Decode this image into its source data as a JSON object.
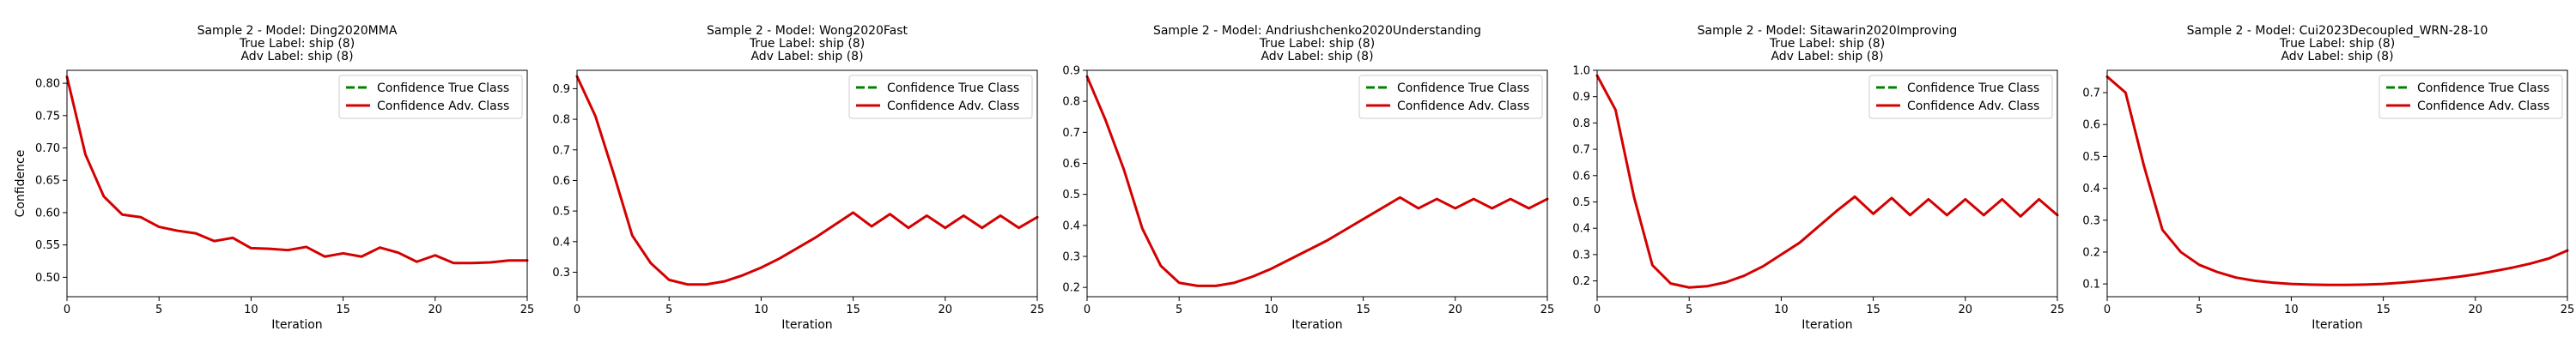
{
  "colors": {
    "true_class": "#008000",
    "adv_class": "#d40000"
  },
  "chart_data": [
    {
      "type": "line",
      "title_lines": [
        "Sample 2 - Model: Ding2020MMA",
        "True Label: ship (8)",
        "Adv Label: ship (8)"
      ],
      "xlabel": "Iteration",
      "ylabel": "Confidence",
      "xlim": [
        0,
        25
      ],
      "ylim": [
        0.47,
        0.82
      ],
      "xticks": [
        0,
        5,
        10,
        15,
        20,
        25
      ],
      "yticks": [
        0.5,
        0.55,
        0.6,
        0.65,
        0.7,
        0.75,
        0.8
      ],
      "ytick_labels": [
        "0.50",
        "0.55",
        "0.60",
        "0.65",
        "0.70",
        "0.75",
        "0.80"
      ],
      "legend_position": "top-right",
      "series": [
        {
          "name": "Confidence True Class",
          "style": "dashed",
          "x": [],
          "y": []
        },
        {
          "name": "Confidence Adv. Class",
          "style": "solid",
          "x": [
            0,
            1,
            2,
            3,
            4,
            5,
            6,
            7,
            8,
            9,
            10,
            11,
            12,
            13,
            14,
            15,
            16,
            17,
            18,
            19,
            20,
            21,
            22,
            23,
            24,
            25
          ],
          "y": [
            0.81,
            0.69,
            0.625,
            0.597,
            0.593,
            0.578,
            0.572,
            0.568,
            0.556,
            0.561,
            0.545,
            0.544,
            0.542,
            0.547,
            0.532,
            0.537,
            0.532,
            0.546,
            0.538,
            0.524,
            0.534,
            0.522,
            0.522,
            0.523,
            0.526,
            0.526
          ]
        }
      ]
    },
    {
      "type": "line",
      "title_lines": [
        "Sample 2 - Model: Wong2020Fast",
        "True Label: ship (8)",
        "Adv Label: ship (8)"
      ],
      "xlabel": "Iteration",
      "ylabel": "",
      "xlim": [
        0,
        25
      ],
      "ylim": [
        0.22,
        0.96
      ],
      "xticks": [
        0,
        5,
        10,
        15,
        20,
        25
      ],
      "yticks": [
        0.3,
        0.4,
        0.5,
        0.6,
        0.7,
        0.8,
        0.9
      ],
      "ytick_labels": [
        "0.3",
        "0.4",
        "0.5",
        "0.6",
        "0.7",
        "0.8",
        "0.9"
      ],
      "legend_position": "top-right",
      "series": [
        {
          "name": "Confidence True Class",
          "style": "dashed",
          "x": [],
          "y": []
        },
        {
          "name": "Confidence Adv. Class",
          "style": "solid",
          "x": [
            0,
            1,
            2,
            3,
            4,
            5,
            6,
            7,
            8,
            9,
            10,
            11,
            12,
            13,
            14,
            15,
            16,
            17,
            18,
            19,
            20,
            21,
            22,
            23,
            24,
            25
          ],
          "y": [
            0.94,
            0.81,
            0.62,
            0.42,
            0.33,
            0.275,
            0.26,
            0.26,
            0.27,
            0.29,
            0.315,
            0.345,
            0.38,
            0.415,
            0.455,
            0.495,
            0.45,
            0.49,
            0.445,
            0.485,
            0.445,
            0.485,
            0.445,
            0.485,
            0.445,
            0.48
          ]
        }
      ]
    },
    {
      "type": "line",
      "title_lines": [
        "Sample 2 - Model: Andriushchenko2020Understanding",
        "True Label: ship (8)",
        "Adv Label: ship (8)"
      ],
      "xlabel": "Iteration",
      "ylabel": "",
      "xlim": [
        0,
        25
      ],
      "ylim": [
        0.17,
        0.9
      ],
      "xticks": [
        0,
        5,
        10,
        15,
        20,
        25
      ],
      "yticks": [
        0.2,
        0.3,
        0.4,
        0.5,
        0.6,
        0.7,
        0.8,
        0.9
      ],
      "ytick_labels": [
        "0.2",
        "0.3",
        "0.4",
        "0.5",
        "0.6",
        "0.7",
        "0.8",
        "0.9"
      ],
      "legend_position": "top-right",
      "series": [
        {
          "name": "Confidence True Class",
          "style": "dashed",
          "x": [],
          "y": []
        },
        {
          "name": "Confidence Adv. Class",
          "style": "solid",
          "x": [
            0,
            1,
            2,
            3,
            4,
            5,
            6,
            7,
            8,
            9,
            10,
            11,
            12,
            13,
            14,
            15,
            16,
            17,
            18,
            19,
            20,
            21,
            22,
            23,
            24,
            25
          ],
          "y": [
            0.88,
            0.74,
            0.58,
            0.39,
            0.27,
            0.215,
            0.205,
            0.205,
            0.215,
            0.235,
            0.26,
            0.29,
            0.32,
            0.35,
            0.385,
            0.42,
            0.455,
            0.49,
            0.455,
            0.485,
            0.455,
            0.485,
            0.455,
            0.485,
            0.455,
            0.485
          ]
        }
      ]
    },
    {
      "type": "line",
      "title_lines": [
        "Sample 2 - Model: Sitawarin2020Improving",
        "True Label: ship (8)",
        "Adv Label: ship (8)"
      ],
      "xlabel": "Iteration",
      "ylabel": "",
      "xlim": [
        0,
        25
      ],
      "ylim": [
        0.14,
        1.0
      ],
      "xticks": [
        0,
        5,
        10,
        15,
        20,
        25
      ],
      "yticks": [
        0.2,
        0.3,
        0.4,
        0.5,
        0.6,
        0.7,
        0.8,
        0.9,
        1.0
      ],
      "ytick_labels": [
        "0.2",
        "0.3",
        "0.4",
        "0.5",
        "0.6",
        "0.7",
        "0.8",
        "0.9",
        "1.0"
      ],
      "legend_position": "top-right",
      "series": [
        {
          "name": "Confidence True Class",
          "style": "dashed",
          "x": [],
          "y": []
        },
        {
          "name": "Confidence Adv. Class",
          "style": "solid",
          "x": [
            0,
            1,
            2,
            3,
            4,
            5,
            6,
            7,
            8,
            9,
            10,
            11,
            12,
            13,
            14,
            15,
            16,
            17,
            18,
            19,
            20,
            21,
            22,
            23,
            24,
            25
          ],
          "y": [
            0.98,
            0.85,
            0.52,
            0.26,
            0.19,
            0.175,
            0.18,
            0.195,
            0.22,
            0.255,
            0.3,
            0.345,
            0.405,
            0.465,
            0.52,
            0.455,
            0.515,
            0.45,
            0.51,
            0.45,
            0.51,
            0.45,
            0.51,
            0.445,
            0.51,
            0.45
          ]
        }
      ]
    },
    {
      "type": "line",
      "title_lines": [
        "Sample 2 - Model: Cui2023Decoupled_WRN-28-10",
        "True Label: ship (8)",
        "Adv Label: ship (8)"
      ],
      "xlabel": "Iteration",
      "ylabel": "",
      "xlim": [
        0,
        25
      ],
      "ylim": [
        0.06,
        0.77
      ],
      "xticks": [
        0,
        5,
        10,
        15,
        20,
        25
      ],
      "yticks": [
        0.1,
        0.2,
        0.3,
        0.4,
        0.5,
        0.6,
        0.7
      ],
      "ytick_labels": [
        "0.1",
        "0.2",
        "0.3",
        "0.4",
        "0.5",
        "0.6",
        "0.7"
      ],
      "legend_position": "top-right",
      "series": [
        {
          "name": "Confidence True Class",
          "style": "dashed",
          "x": [],
          "y": []
        },
        {
          "name": "Confidence Adv. Class",
          "style": "solid",
          "x": [
            0,
            1,
            2,
            3,
            4,
            5,
            6,
            7,
            8,
            9,
            10,
            11,
            12,
            13,
            14,
            15,
            16,
            17,
            18,
            19,
            20,
            21,
            22,
            23,
            24,
            25
          ],
          "y": [
            0.75,
            0.7,
            0.47,
            0.27,
            0.2,
            0.16,
            0.137,
            0.12,
            0.11,
            0.104,
            0.1,
            0.098,
            0.097,
            0.097,
            0.098,
            0.1,
            0.104,
            0.109,
            0.115,
            0.122,
            0.13,
            0.14,
            0.151,
            0.164,
            0.18,
            0.205
          ]
        }
      ]
    }
  ]
}
